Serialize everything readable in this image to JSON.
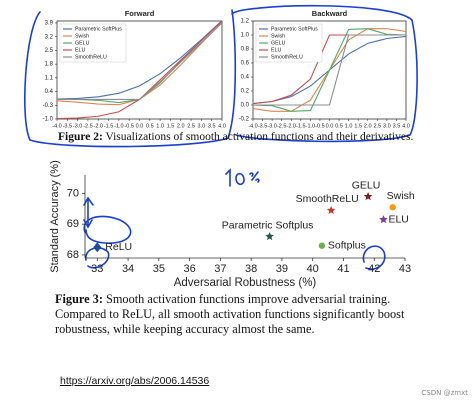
{
  "chart_data": [
    {
      "type": "line",
      "title": "Forward",
      "legend": "upper left",
      "grid": false,
      "x": [
        -4,
        -3,
        -2,
        -1,
        0,
        1,
        2,
        3,
        4
      ],
      "xlim": [
        -4,
        4
      ],
      "xticks": [
        {
          "value": -4,
          "label": "-4.0"
        },
        -3.5,
        {
          "value": -3,
          "label": "-3.0"
        },
        -2.5,
        {
          "value": -2,
          "label": "-2.0"
        },
        -1.5,
        {
          "value": -1,
          "label": "-1.0"
        },
        -0.5,
        {
          "value": 0,
          "label": "0.0"
        },
        0.5,
        {
          "value": 1,
          "label": "1.0"
        },
        1.5,
        {
          "value": 2,
          "label": "2.0"
        },
        2.5,
        {
          "value": 3,
          "label": "3.0"
        },
        3.5,
        {
          "value": 4,
          "label": "4.0"
        }
      ],
      "ylim": [
        -1,
        4
      ],
      "yticks": [
        {
          "value": -1,
          "label": "-1.0"
        },
        -0.3,
        0.4,
        1.1,
        1.8,
        2.5,
        3.2,
        3.9
      ],
      "series": [
        {
          "name": "Parametric SoftPlus",
          "color": "#4c72b0",
          "values": [
            0.02,
            0.05,
            0.13,
            0.31,
            0.69,
            1.31,
            2.13,
            3.05,
            4.02
          ]
        },
        {
          "name": "Swish",
          "color": "#dd8452",
          "values": [
            -0.07,
            -0.14,
            -0.24,
            -0.27,
            0,
            0.73,
            1.76,
            2.86,
            3.93
          ]
        },
        {
          "name": "GELU",
          "color": "#55a868",
          "values": [
            0,
            0,
            -0.05,
            -0.16,
            0,
            0.84,
            1.95,
            3.0,
            4.0
          ]
        },
        {
          "name": "ELU",
          "color": "#c44e52",
          "values": [
            -0.98,
            -0.95,
            -0.86,
            -0.63,
            0,
            1,
            2,
            3,
            4
          ]
        },
        {
          "name": "SmoothReLU",
          "color": "#8c8c8c",
          "values": [
            0,
            0,
            0,
            0,
            0,
            0.9,
            1.9,
            2.9,
            3.9
          ]
        }
      ]
    },
    {
      "type": "line",
      "title": "Backward",
      "legend": "upper left",
      "grid": false,
      "x": [
        -4,
        -3,
        -2,
        -1,
        0,
        1,
        2,
        3,
        4
      ],
      "xlim": [
        -4,
        4
      ],
      "xticks": [
        {
          "value": -4,
          "label": "-4.0"
        },
        -3.5,
        {
          "value": -3,
          "label": "-3.0"
        },
        -2.5,
        {
          "value": -2,
          "label": "-2.0"
        },
        -1.5,
        {
          "value": -1,
          "label": "-1.0"
        },
        -0.5,
        {
          "value": 0,
          "label": "0.0"
        },
        0.5,
        {
          "value": 1,
          "label": "1.0"
        },
        1.5,
        {
          "value": 2,
          "label": "2.0"
        },
        2.5,
        {
          "value": 3,
          "label": "3.0"
        },
        3.5,
        {
          "value": 4,
          "label": "4.0"
        }
      ],
      "ylim": [
        -0.2,
        1.2
      ],
      "yticks": [
        -0.2,
        {
          "value": 0,
          "label": "0.0"
        },
        0.2,
        0.4,
        0.6,
        0.8,
        {
          "value": 1,
          "label": "1.0"
        },
        1.2
      ],
      "series": [
        {
          "name": "Parametric SoftPlus",
          "color": "#4c72b0",
          "values": [
            0.02,
            0.05,
            0.12,
            0.27,
            0.5,
            0.73,
            0.88,
            0.95,
            0.98
          ]
        },
        {
          "name": "Swish",
          "color": "#dd8452",
          "values": [
            -0.05,
            -0.09,
            -0.09,
            0.07,
            0.5,
            0.93,
            1.09,
            1.09,
            1.05
          ]
        },
        {
          "name": "GELU",
          "color": "#55a868",
          "values": [
            0,
            -0.01,
            -0.09,
            -0.08,
            0.5,
            1.08,
            1.09,
            1.01,
            1.0
          ]
        },
        {
          "name": "ELU",
          "color": "#c44e52",
          "values": [
            0.02,
            0.05,
            0.14,
            0.37,
            1,
            1,
            1,
            1,
            1
          ]
        },
        {
          "name": "SmoothReLU",
          "color": "#8c8c8c",
          "values": [
            0,
            0,
            0,
            0,
            0,
            1,
            1,
            1,
            1
          ]
        }
      ]
    },
    {
      "type": "scatter",
      "xlabel": "Adversarial Robustness (%)",
      "ylabel": "Standard Accuracy (%)",
      "xlim": [
        32.6,
        43
      ],
      "xticks": [
        33,
        34,
        35,
        36,
        37,
        38,
        39,
        40,
        41,
        42,
        43
      ],
      "ylim": [
        67.9,
        70.6
      ],
      "yticks": [
        68,
        69,
        70
      ],
      "series": [
        {
          "name": "ReLU",
          "color": "#1f4e8c",
          "marker": "diamond",
          "x": [
            33.0
          ],
          "values": [
            68.25
          ]
        },
        {
          "name": "Parametric Softplus",
          "color": "#1d5a4a",
          "marker": "star",
          "x": [
            38.6
          ],
          "values": [
            68.6
          ]
        },
        {
          "name": "SmoothReLU",
          "color": "#c0392b",
          "marker": "star",
          "x": [
            40.6
          ],
          "values": [
            69.45
          ]
        },
        {
          "name": "GELU",
          "color": "#7b1f1f",
          "marker": "star",
          "x": [
            41.8
          ],
          "values": [
            69.9
          ]
        },
        {
          "name": "Swish",
          "color": "#f39c12",
          "marker": "circle",
          "x": [
            42.6
          ],
          "values": [
            69.55
          ]
        },
        {
          "name": "ELU",
          "color": "#7d3c98",
          "marker": "star",
          "x": [
            42.3
          ],
          "values": [
            69.15
          ]
        },
        {
          "name": "Softplus",
          "color": "#6ab04c",
          "marker": "circle",
          "x": [
            40.3
          ],
          "values": [
            68.3
          ]
        }
      ]
    }
  ],
  "captions": {
    "figure2": {
      "label": "Figure 2:",
      "text": "Visualizations of smooth activation functions and their derivatives."
    },
    "figure3": {
      "label": "Figure 3:",
      "text": "Smooth activation functions improve adversarial training. Compared to ReLU, all smooth activation functions significantly boost robustness, while keeping accuracy almost the same."
    }
  },
  "url": "https://arxiv.org/abs/2006.14536",
  "watermark": "CSDN @zmxt"
}
